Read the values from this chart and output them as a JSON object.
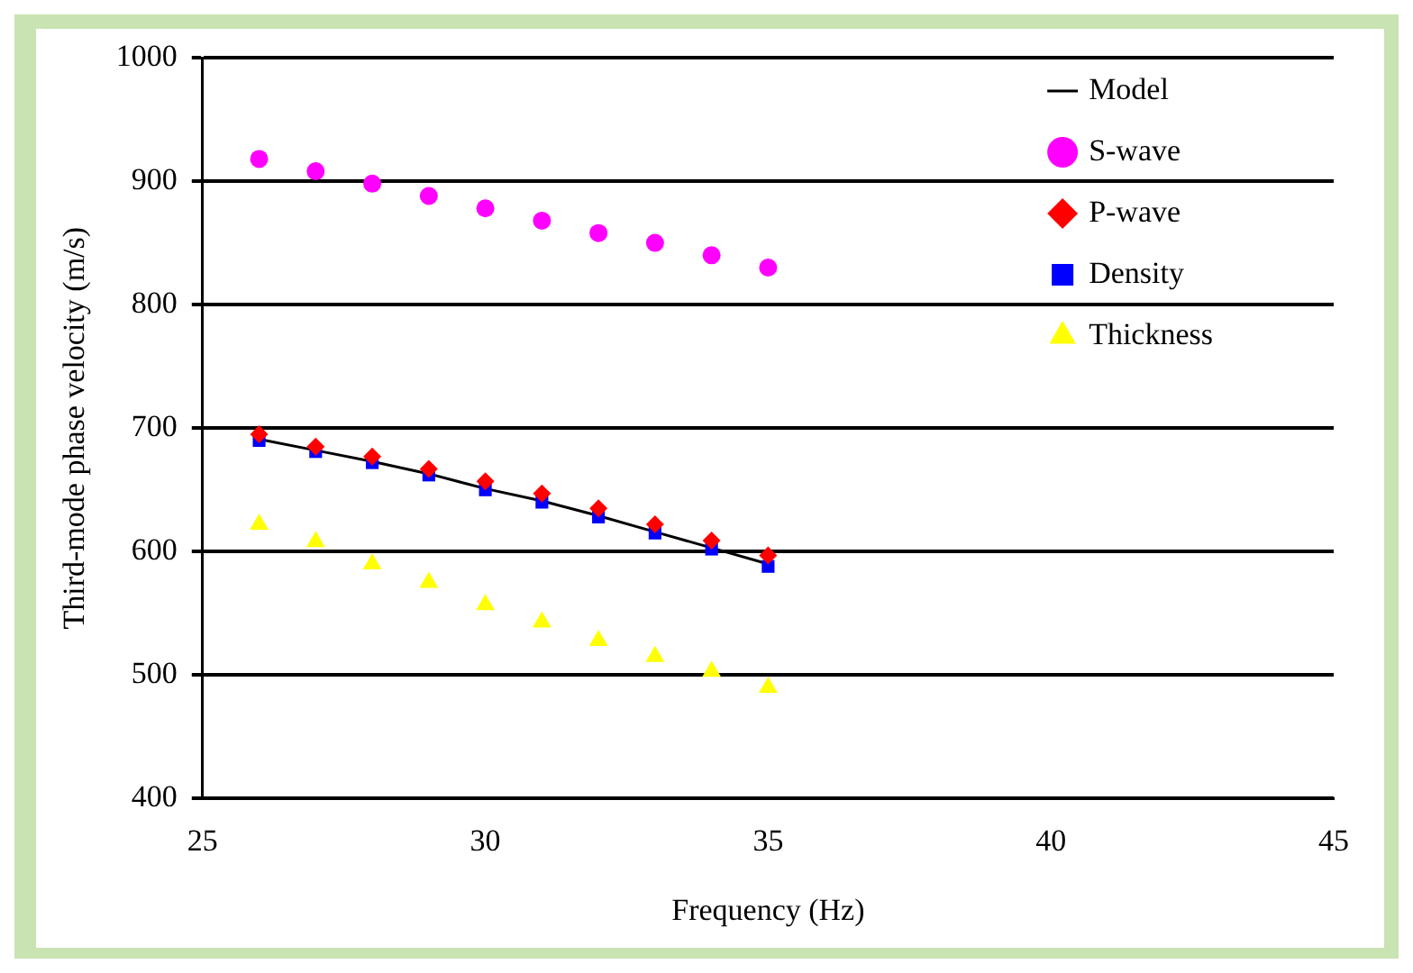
{
  "chart_data": {
    "type": "scatter",
    "xlabel": "Frequency (Hz)",
    "ylabel": "Third-mode phase velocity (m/s)",
    "x": [
      26,
      27,
      28,
      29,
      30,
      31,
      32,
      33,
      34,
      35
    ],
    "xlim": [
      25,
      45
    ],
    "xticks": [
      25,
      30,
      35,
      40,
      45
    ],
    "ylim": [
      400,
      1000
    ],
    "yticks": [
      400,
      500,
      600,
      700,
      800,
      900,
      1000
    ],
    "grid": "y",
    "legend": "top right",
    "series": [
      {
        "name": "Model",
        "type": "line",
        "marker": "none",
        "line_style": "solid",
        "color": "#000000",
        "values": [
          691,
          682,
          673,
          663,
          651,
          641,
          629,
          616,
          603,
          590
        ]
      },
      {
        "name": "S-wave",
        "marker": "circle",
        "color": "#ff00ff",
        "values": [
          918,
          908,
          898,
          888,
          878,
          868,
          858,
          850,
          840,
          830
        ]
      },
      {
        "name": "P-wave",
        "marker": "diamond",
        "color": "#ff0000",
        "values": [
          695,
          685,
          677,
          667,
          657,
          647,
          635,
          622,
          609,
          597
        ]
      },
      {
        "name": "Density",
        "marker": "square",
        "color": "#0000ff",
        "values": [
          690,
          681,
          672,
          662,
          650,
          640,
          628,
          615,
          602,
          588
        ]
      },
      {
        "name": "Thickness",
        "marker": "triangle",
        "color": "#ffff00",
        "values": [
          622,
          608,
          590,
          575,
          557,
          543,
          528,
          515,
          503,
          490
        ]
      }
    ]
  }
}
